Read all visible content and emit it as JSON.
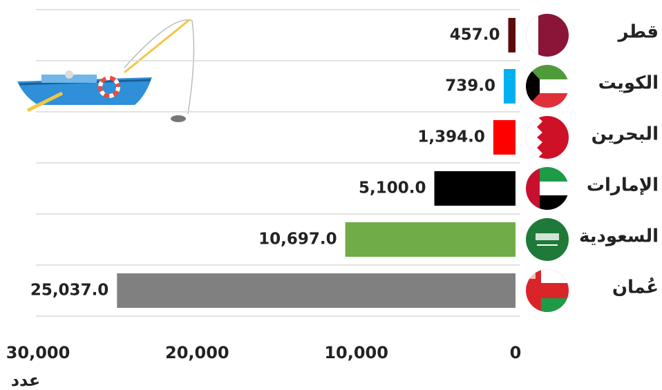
{
  "chart_data": {
    "type": "bar",
    "orientation": "horizontal",
    "categories": [
      "قطر",
      "الكويت",
      "البحرين",
      "الإمارات",
      "السعودية",
      "عُمان"
    ],
    "values": [
      457,
      739,
      1394,
      5100,
      10697,
      25037
    ],
    "value_labels": [
      "457.0",
      "739.0",
      "1,394.0",
      "5,100.0",
      "10,697.0",
      "25,037.0"
    ],
    "colors": [
      "#5c0a0a",
      "#00b0f0",
      "#ff0000",
      "#000000",
      "#70ad47",
      "#808080"
    ],
    "xlim": [
      0,
      30000
    ],
    "xticks": [
      0,
      {
        "value": 10000,
        "label": "10,000"
      },
      {
        "value": 20000,
        "label": "20,000"
      },
      {
        "value": 30000,
        "label": "30,000"
      }
    ],
    "xlabel": "عدد"
  }
}
